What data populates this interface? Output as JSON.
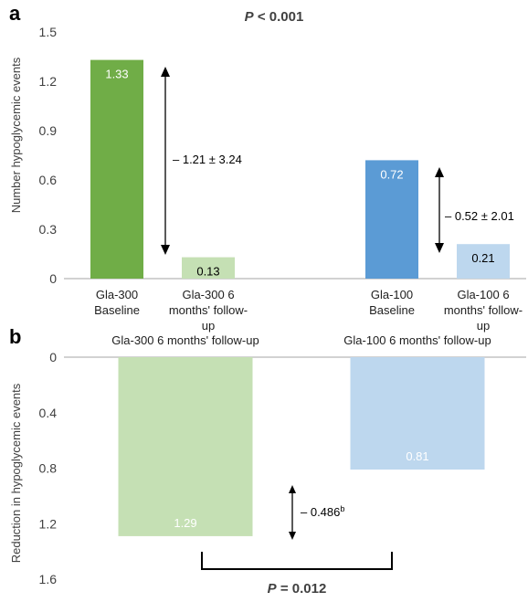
{
  "chart_data": [
    {
      "panel": "a",
      "type": "bar",
      "title": "P < 0.001",
      "title_italic": "P",
      "title_rest": " < 0.001",
      "ylabel": "Number hypoglycemic events",
      "ylim": [
        0,
        1.5
      ],
      "yticks": [
        "0",
        "0.3",
        "0.6",
        "0.9",
        "1.2",
        "1.5"
      ],
      "ytick_values": [
        0,
        0.3,
        0.6,
        0.9,
        1.2,
        1.5
      ],
      "grid": false,
      "categories": [
        [
          "Gla-300",
          "Baseline"
        ],
        [
          "Gla-300 6",
          "months' follow-",
          "up"
        ],
        [
          "Gla-100",
          "Baseline"
        ],
        [
          "Gla-100  6",
          "months' follow-",
          "up"
        ]
      ],
      "values": [
        1.33,
        0.13,
        0.72,
        0.21
      ],
      "value_labels": [
        "1.33",
        "0.13",
        "0.72",
        "0.21"
      ],
      "colors": [
        "#70ad47",
        "#c5e0b4",
        "#5b9bd5",
        "#bdd7ee"
      ],
      "annotations": [
        "– 1.21 ± 3.24",
        "– 0.52 ± 2.01"
      ]
    },
    {
      "panel": "b",
      "type": "bar",
      "ylabel": "Reduction in hypoglycemic events",
      "ylim": [
        0,
        1.6
      ],
      "y_inverted": true,
      "yticks": [
        "0",
        "0.4",
        "0.8",
        "1.2",
        "1.6"
      ],
      "ytick_values": [
        0,
        0.4,
        0.8,
        1.2,
        1.6
      ],
      "grid": false,
      "categories": [
        "Gla-300 6 months' follow-up",
        "Gla-100 6 months' follow-up"
      ],
      "values": [
        1.29,
        0.81
      ],
      "value_labels": [
        "1.29",
        "0.81"
      ],
      "colors": [
        "#c5e0b4",
        "#bdd7ee"
      ],
      "annotation": "– 0.486",
      "annotation_sup": "b",
      "pvalue_italic": "P",
      "pvalue_rest": " = 0.012"
    }
  ]
}
